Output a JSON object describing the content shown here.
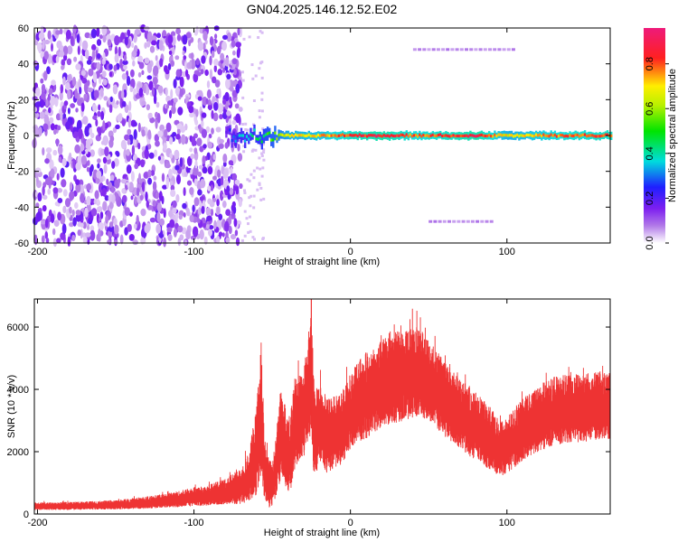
{
  "figure_title": "GN04.2025.146.12.52.E02",
  "chart_data": [
    {
      "type": "heatmap",
      "title": "",
      "xlabel": "Height of straight line (km)",
      "ylabel": "Frequency (Hz)",
      "xlim": [
        -202,
        166
      ],
      "ylim": [
        -60,
        60
      ],
      "xticks": [
        -200,
        -100,
        0,
        100
      ],
      "yticks": [
        -60,
        -40,
        -20,
        0,
        20,
        40,
        60
      ],
      "colorbar": {
        "label": "Normalized spectral amplitude",
        "range": [
          0,
          0.96
        ],
        "ticks": [
          "0.0",
          "0.2",
          "0.4",
          "0.6",
          "0.8"
        ],
        "tick_values": [
          0.0,
          0.2,
          0.4,
          0.6,
          0.8
        ],
        "colormap": "white-purple-blue-cyan-green-yellow-red-pink"
      },
      "features": {
        "noise_region_x": [
          -202,
          -70
        ],
        "centerline_freq": 0,
        "centerline_x": [
          -80,
          166
        ],
        "centerline_points": [
          {
            "x": -80,
            "amp": 0.2
          },
          {
            "x": -72,
            "amp": 0.35
          },
          {
            "x": -60,
            "amp": 0.45
          },
          {
            "x": -50,
            "amp": 0.55
          },
          {
            "x": -40,
            "amp": 0.7
          },
          {
            "x": -20,
            "amp": 0.75
          },
          {
            "x": 0,
            "amp": 0.85
          },
          {
            "x": 20,
            "amp": 0.9
          },
          {
            "x": 40,
            "amp": 0.8
          },
          {
            "x": 60,
            "amp": 0.85
          },
          {
            "x": 80,
            "amp": 0.9
          },
          {
            "x": 100,
            "amp": 0.7
          },
          {
            "x": 130,
            "amp": 0.8
          },
          {
            "x": 166,
            "amp": 0.85
          }
        ],
        "side_bands": [
          {
            "x": [
              40,
              105
            ],
            "freq": 48
          },
          {
            "x": [
              50,
              90
            ],
            "freq": -48
          }
        ]
      }
    },
    {
      "type": "line",
      "title": "",
      "xlabel": "Height of straight line (km)",
      "ylabel": "SNR (10 * v/v)",
      "xlim": [
        -202,
        166
      ],
      "ylim": [
        0,
        6900
      ],
      "xticks": [
        -200,
        -100,
        0,
        100
      ],
      "yticks": [
        0,
        2000,
        4000,
        6000
      ],
      "color": "#ee3333",
      "series": [
        {
          "x": [
            -202,
            -190,
            -180,
            -170,
            -160,
            -150,
            -140,
            -130,
            -120,
            -110,
            -100,
            -90,
            -80,
            -70,
            -65,
            -60,
            -57,
            -55,
            -52,
            -50,
            -48,
            -45,
            -42,
            -40,
            -38,
            -35,
            -30,
            -25,
            -23,
            -20,
            -15,
            -10,
            -5,
            0,
            5,
            10,
            20,
            30,
            40,
            45,
            50,
            60,
            70,
            80,
            90,
            95,
            100,
            110,
            120,
            130,
            140,
            150,
            160,
            166
          ],
          "y": [
            250,
            250,
            260,
            270,
            280,
            300,
            330,
            370,
            420,
            480,
            550,
            620,
            720,
            900,
            1200,
            2000,
            3500,
            1500,
            1000,
            900,
            1400,
            2500,
            2200,
            1800,
            2100,
            3000,
            3200,
            4500,
            2500,
            3000,
            2500,
            2600,
            2800,
            3300,
            3600,
            3800,
            4200,
            4400,
            4600,
            4500,
            4300,
            3700,
            3200,
            2800,
            2400,
            2100,
            2200,
            2700,
            3100,
            3300,
            3400,
            3400,
            3500,
            3500
          ],
          "spread": [
            120,
            120,
            130,
            130,
            140,
            150,
            170,
            200,
            220,
            260,
            300,
            350,
            400,
            600,
            800,
            1400,
            2200,
            1000,
            800,
            700,
            900,
            1500,
            1400,
            1200,
            1300,
            1500,
            1400,
            2000,
            1500,
            1300,
            1200,
            1200,
            1200,
            1200,
            1300,
            1400,
            1400,
            1500,
            1500,
            1400,
            1300,
            1200,
            1100,
            1100,
            1000,
            900,
            900,
            1000,
            1100,
            1100,
            1100,
            1100,
            1100,
            1100
          ]
        }
      ]
    }
  ]
}
